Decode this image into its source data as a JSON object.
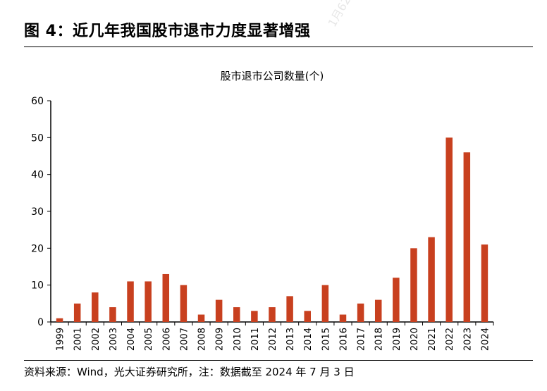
{
  "figure": {
    "title": "图 4：近几年我国股市退市力度显著增强",
    "source": "资料来源：Wind，光大证券研究所，注：数据截至 2024 年 7 月 3 日",
    "watermark": "1月622"
  },
  "colors": {
    "bar": "#c8401f",
    "axis": "#000000"
  },
  "chart_data": {
    "type": "bar",
    "title": "股市退市公司数量(个)",
    "xlabel": "",
    "ylabel": "",
    "categories": [
      "1999",
      "2001",
      "2002",
      "2003",
      "2004",
      "2005",
      "2006",
      "2007",
      "2008",
      "2009",
      "2010",
      "2011",
      "2012",
      "2013",
      "2014",
      "2015",
      "2016",
      "2017",
      "2018",
      "2019",
      "2020",
      "2021",
      "2022",
      "2023",
      "2024"
    ],
    "series": [
      {
        "values": [
          1,
          5,
          8,
          4,
          11,
          11,
          13,
          10,
          2,
          6,
          4,
          3,
          4,
          7,
          3,
          10,
          2,
          5,
          6,
          12,
          20,
          23,
          50,
          46,
          21
        ]
      }
    ],
    "ylim": [
      0,
      60
    ],
    "yticks": [
      0,
      10,
      20,
      30,
      40,
      50,
      60
    ],
    "grid": false,
    "legend": "none"
  }
}
